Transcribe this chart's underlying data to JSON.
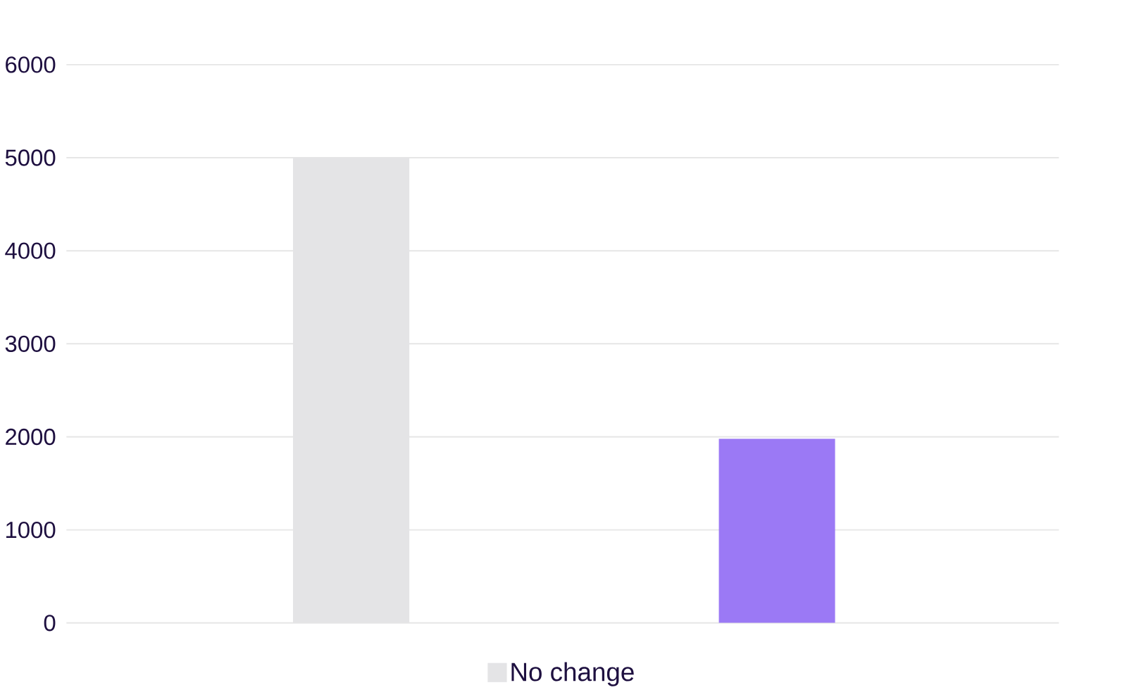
{
  "chart_data": {
    "type": "bar",
    "categories": [
      null,
      null
    ],
    "series": [
      {
        "name": "No change",
        "color": "#e4e4e6",
        "values": [
          5000,
          null
        ]
      },
      {
        "color": "#9b79f5",
        "values": [
          null,
          1980
        ]
      }
    ],
    "ylim": [
      0,
      6000
    ],
    "yticks": [
      0,
      1000,
      2000,
      3000,
      4000,
      5000,
      6000
    ],
    "grid": "y",
    "legend": "bottom",
    "tick_labels": "y"
  }
}
